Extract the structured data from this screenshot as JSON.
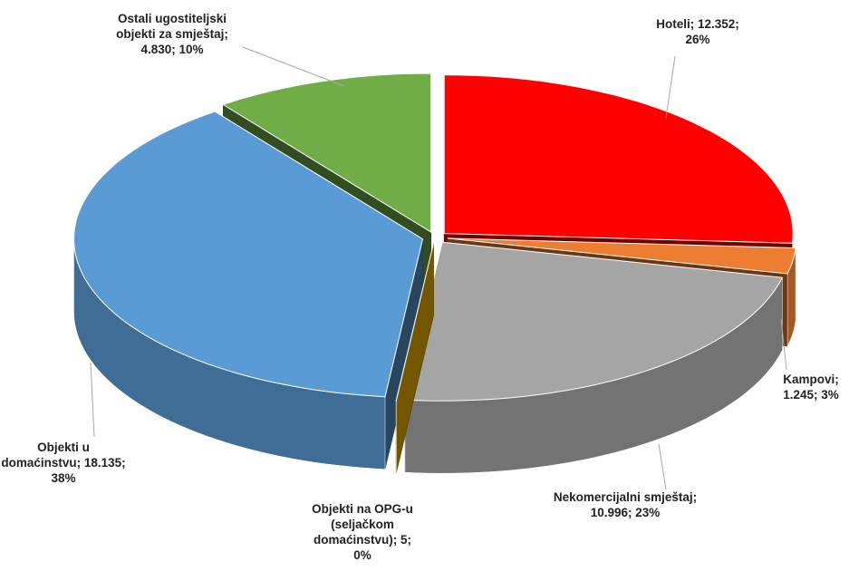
{
  "chart_data": {
    "type": "pie",
    "categories": [
      "Hoteli",
      "Kampovi",
      "Nekomercijalni smještaj",
      "Objekti na OPG-u (seljačkom domaćinstvu)",
      "Objekti u domaćinstvu",
      "Ostali ugostiteljski objekti za smještaj"
    ],
    "values": [
      12352,
      1245,
      10996,
      5,
      18135,
      4830
    ],
    "value_labels": [
      "12.352",
      "1.245",
      "10.996",
      "5",
      "18.135",
      "4.830"
    ],
    "percents": [
      26,
      3,
      23,
      0,
      38,
      10
    ],
    "percent_labels": [
      "26%",
      "3%",
      "23%",
      "0%",
      "38%",
      "10%"
    ],
    "separator": "; ",
    "colors": [
      "#ff0000",
      "#ed7d31",
      "#a5a5a5",
      "#ffc000",
      "#5b9bd5",
      "#70ad47"
    ],
    "three_d": true,
    "exploded": true
  }
}
